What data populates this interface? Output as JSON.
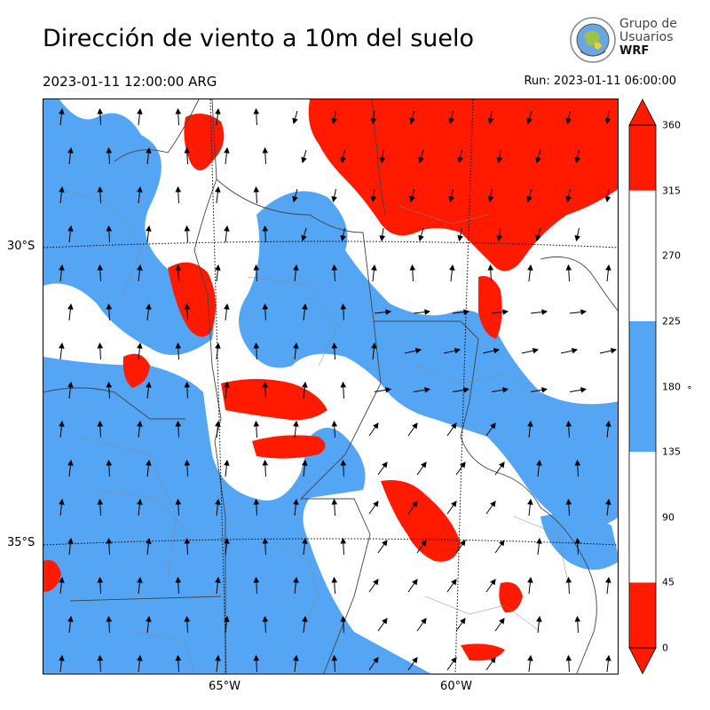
{
  "title": "Dirección de viento a 10m del suelo",
  "valid_time": "2023-01-11 12:00:00 ARG",
  "run_time": "Run: 2023-01-11 06:00:00",
  "logo": {
    "line1": "Grupo de",
    "line2": "Usuarios",
    "line3": "WRF"
  },
  "map": {
    "lat_labels": [
      {
        "text": "30°S",
        "value": -30
      },
      {
        "text": "35°S",
        "value": -35
      }
    ],
    "lon_labels": [
      {
        "text": "65°W",
        "value": -65
      },
      {
        "text": "60°W",
        "value": -60
      }
    ],
    "fill_colors": {
      "red": "#ff1a00",
      "blue": "#55a5f5",
      "white": "#ffffff"
    }
  },
  "colorbar": {
    "unit": "°",
    "ticks": [
      "0",
      "45",
      "90",
      "135",
      "180",
      "225",
      "270",
      "315",
      "360"
    ],
    "segments": [
      {
        "from": 0,
        "to": 45,
        "color": "#ff1a00"
      },
      {
        "from": 45,
        "to": 135,
        "color": "#ffffff"
      },
      {
        "from": 135,
        "to": 225,
        "color": "#55a5f5"
      },
      {
        "from": 225,
        "to": 315,
        "color": "#ffffff"
      },
      {
        "from": 315,
        "to": 360,
        "color": "#ff1a00"
      }
    ]
  }
}
